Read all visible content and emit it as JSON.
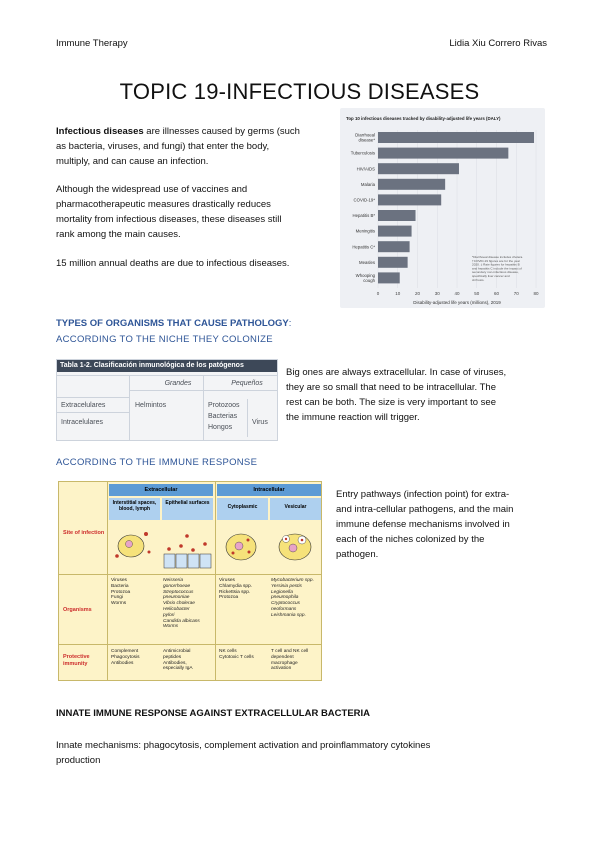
{
  "header": {
    "left": "Immune Therapy",
    "right": "Lidia Xiu Correro Rivas"
  },
  "title": "TOPIC 19-INFECTIOUS DISEASES",
  "intro": {
    "bold_term": "Infectious diseases",
    "line1_rest": " are illnesses caused by germs (such",
    "line2": "as bacteria, viruses, and fungi) that enter the body,",
    "line3": "multiply, and can cause an infection.",
    "p2_lines": [
      "Although the widespread use of vaccines and",
      "pharmacotherapeutic measures drastically reduces",
      "mortality from infectious diseases, these diseases still",
      "rank among the main causes."
    ],
    "p3": "15 million annual deaths are due to infectious diseases."
  },
  "chart_data": {
    "type": "bar",
    "orientation": "horizontal",
    "title": "Top 10 infectious diseases tracked by disability-adjusted life years (DALY)",
    "categories": [
      "Diarrhoeal disease*",
      "Tuberculosis",
      "HIV/AIDS",
      "Malaria",
      "COVID-19*",
      "Hepatitis B*",
      "Meningitis",
      "Hepatitis C*",
      "Measles",
      "Whooping cough"
    ],
    "values": [
      79,
      66,
      41,
      34,
      32,
      19,
      17,
      16,
      15,
      11
    ],
    "xlabel": "Disability-adjusted life years (millions), 2019",
    "xlim": [
      0,
      80
    ],
    "xticks": [
      0,
      10,
      20,
      30,
      40,
      50,
      60,
      70,
      80
    ],
    "bar_color": "#6b7280",
    "footnote": "*Diarrhoeal disease includes cholera. †COVID-19 figures are for the year 2020. ‡ Rate figures for hepatitis B and hepatitis C include the impact of secondary non-infectious disease, specifically liver cancer and cirrhosis."
  },
  "section1": {
    "heading_bold": "TYPES OF ORGANISMS THAT CAUSE PATHOLOGY",
    "heading_colon": ":",
    "sub": "ACCORDING TO THE NICHE THEY COLONIZE",
    "table": {
      "title": "Tabla 1-2.  Clasificación inmunológica de los patógenos",
      "col_big": "Grandes",
      "col_small": "Pequeños",
      "row_extra": "Extracelulares",
      "row_intra": "Intracelulares",
      "big_item": "Helmintos",
      "small_items": [
        "Protozoos",
        "Bacterias",
        "Hongos"
      ],
      "virus": "Virus"
    },
    "desc_lines": [
      "Big ones are always extracellular. In case of viruses,",
      "they are so small that need to be intracellular. The",
      "rest can be both. The size is very important to see",
      "the immune reaction will trigger."
    ]
  },
  "section2": {
    "sub": "ACCORDING TO THE IMMUNE RESPONSE",
    "figure": {
      "extracellular": "Extracellular",
      "intracellular": "Intracellular",
      "interstitial": "Interstitial spaces, blood, lymph",
      "epithelial": "Epithelial surfaces",
      "cytoplasmic": "Cytoplasmic",
      "vesicular": "Vesicular",
      "row_site": "Site of infection",
      "row_organisms": "Organisms",
      "row_protective": "Protective immunity",
      "org_interstitial": "Viruses\nBacteria\nProtozoa\nFungi\nWorms",
      "org_epithelial": "Neisseria\n  gonorrhoeae\nStreptococcus\n  pneumoniae\nVibrio cholerae\nHelicobacter\n  pylori\nCandida albicans\nWorms",
      "org_cytoplasmic": "Viruses\nChlamydia spp.\nRickettsia spp.\nProtozoa",
      "org_vesicular": "Mycobacterium spp.\nYersinia pestis\nLegionella\n  pneumophila\nCryptococcus\n  neoformans\nLeishmania spp.",
      "prot_interstitial": "Complement\nPhagocytosis\nAntibodies",
      "prot_epithelial": "Antimicrobial\n  peptides\nAntibodies,\n  especially IgA",
      "prot_cytoplasmic": "NK cells\nCytotoxic T cells",
      "prot_vesicular": "T cell and NK cell\n  dependent\n  macrophage\n  activation"
    },
    "desc_lines": [
      "Entry pathways (infection point) for extra-",
      "and intra-cellular pathogens, and the main",
      "immune defense mechanisms involved in",
      "each of the niches colonized by the",
      "pathogen."
    ]
  },
  "section3": {
    "heading": "INNATE IMMUNE RESPONSE AGAINST EXTRACELLULAR BACTERIA",
    "lines": [
      "Innate mechanisms: phagocytosis, complement activation and proinflammatory cytokines",
      "production"
    ]
  }
}
